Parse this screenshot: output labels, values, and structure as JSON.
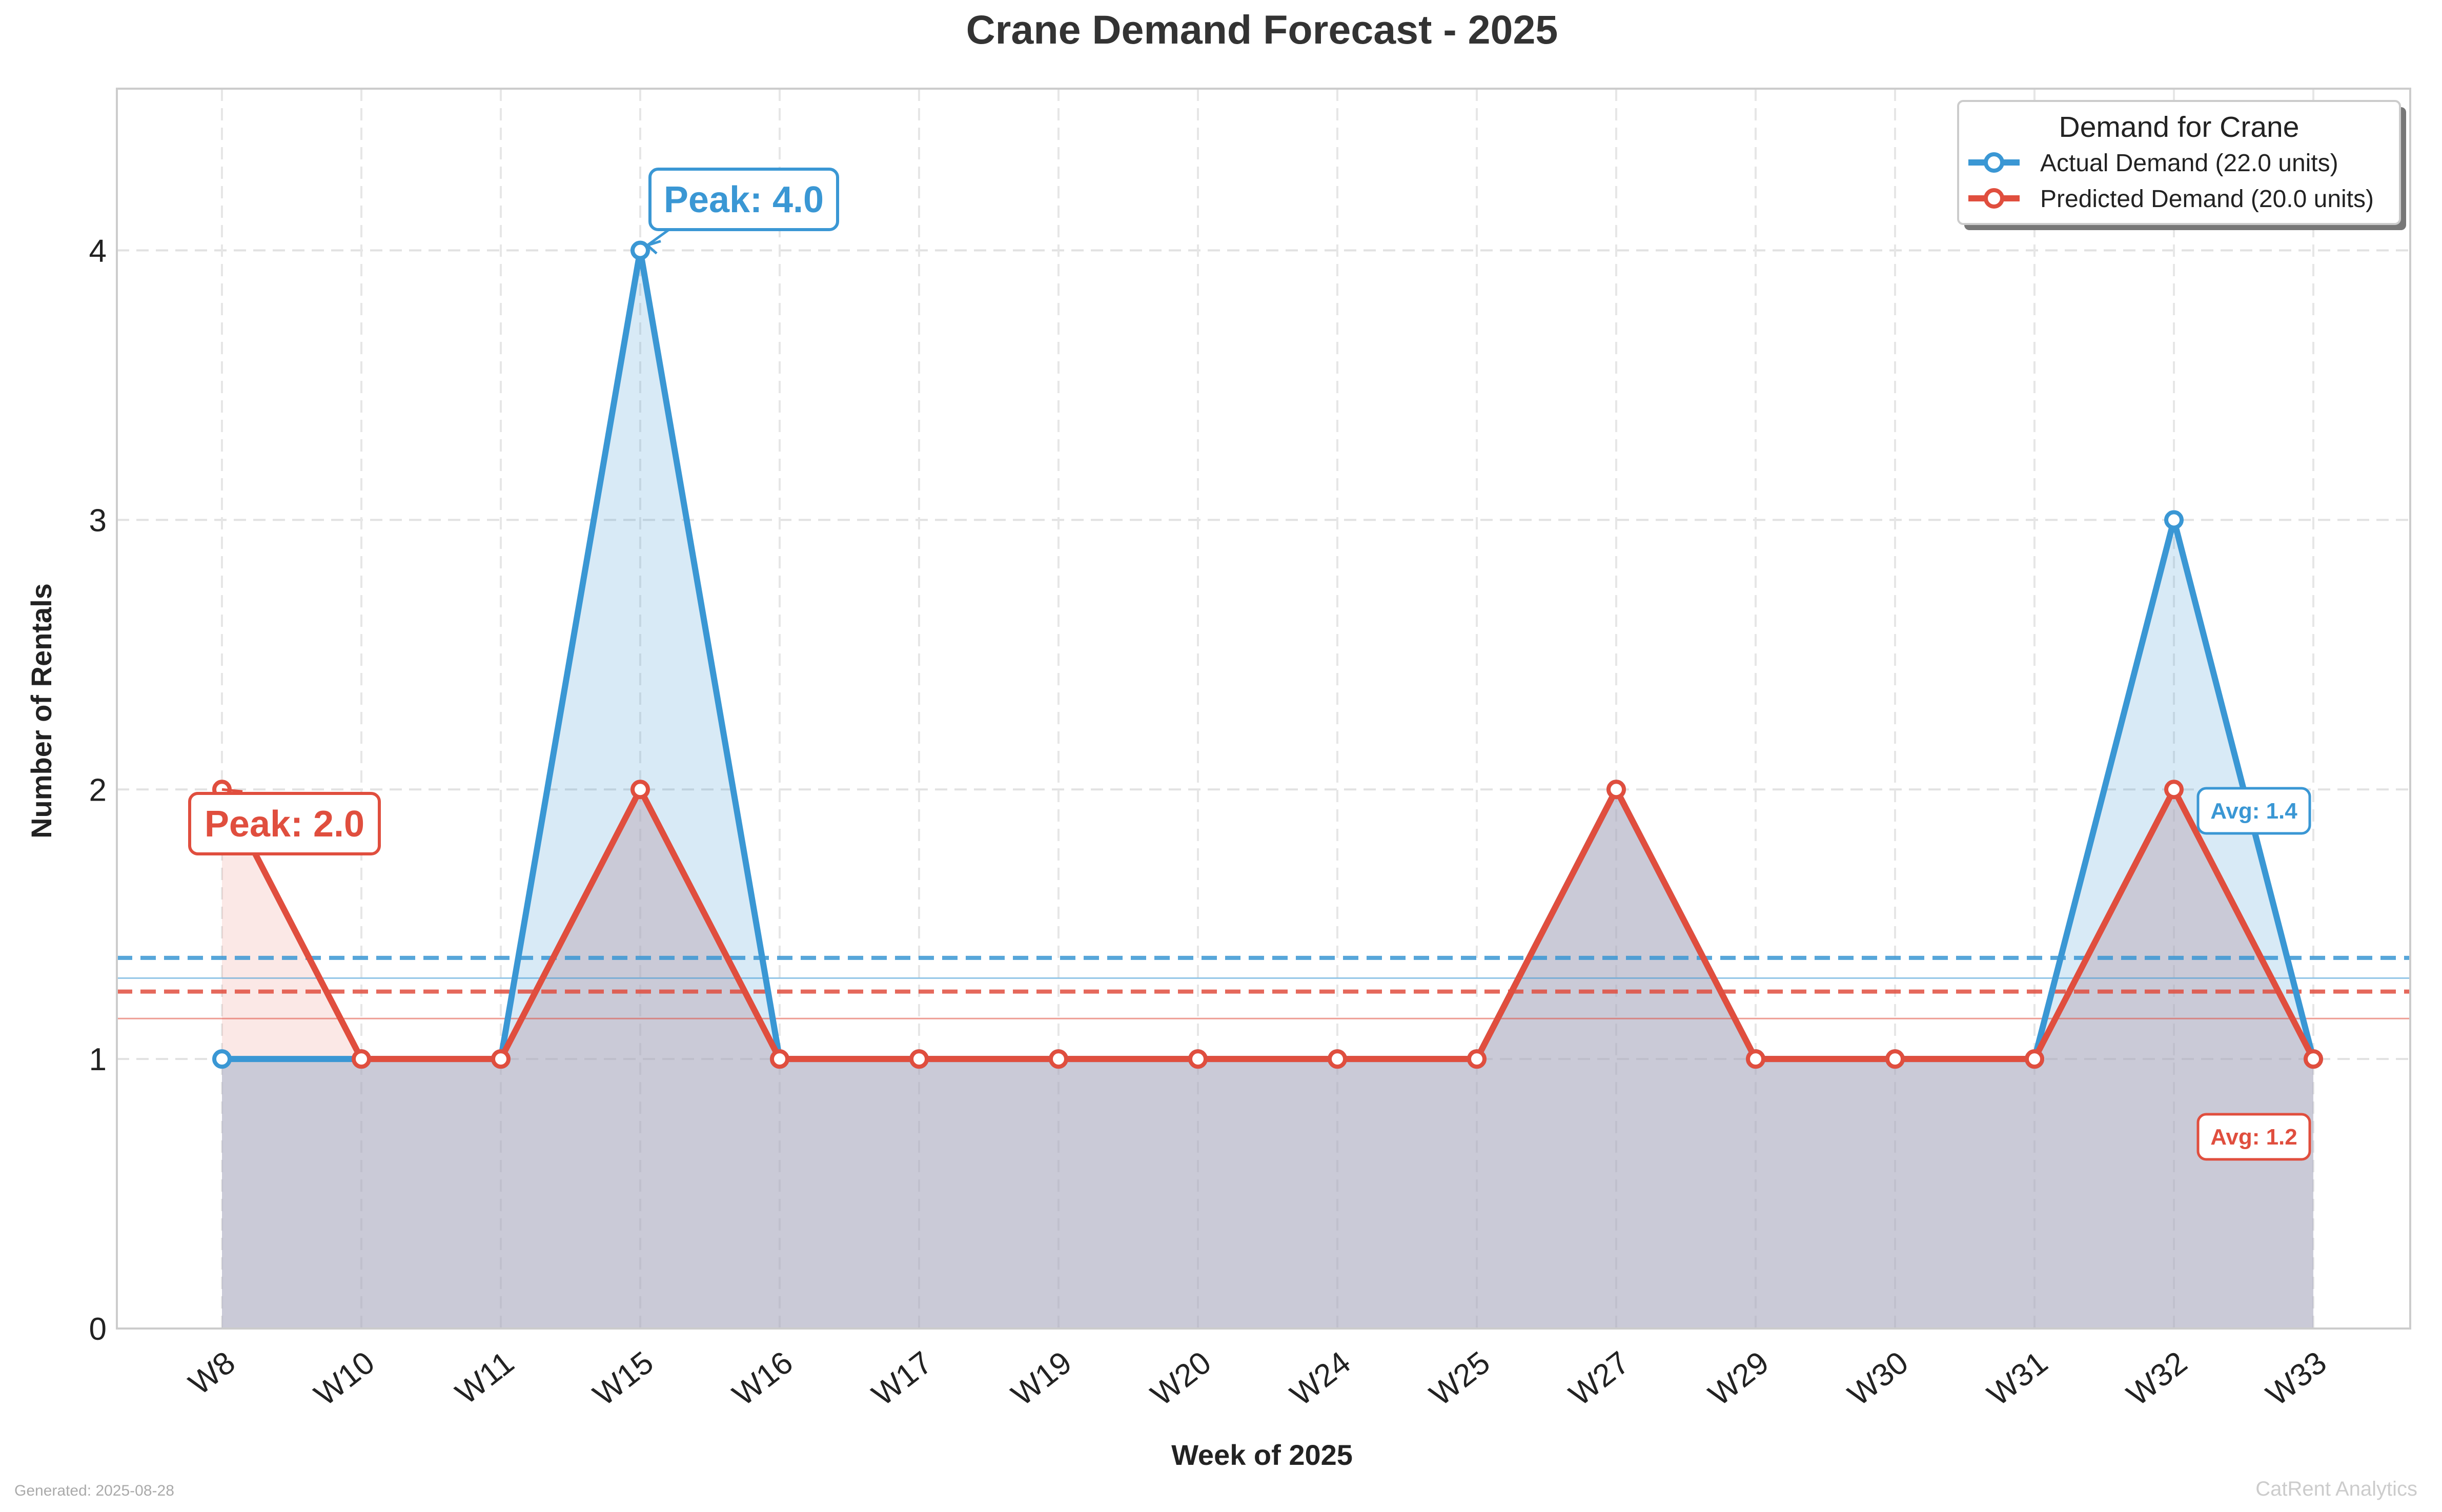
{
  "chart_data": {
    "type": "line",
    "title": "Crane Demand Forecast - 2025",
    "xlabel": "Week of 2025",
    "ylabel": "Number of Rentals",
    "categories": [
      "W8",
      "W10",
      "W11",
      "W15",
      "W16",
      "W17",
      "W19",
      "W20",
      "W24",
      "W25",
      "W27",
      "W29",
      "W30",
      "W31",
      "W32",
      "W33"
    ],
    "ylim": [
      0,
      4.6
    ],
    "yticks": [
      0,
      1,
      2,
      3,
      4
    ],
    "grid": true,
    "legend": {
      "title": "Demand for Crane",
      "position": "top-right"
    },
    "series": [
      {
        "name": "Actual Demand (22.0 units)",
        "color": "#3a97d4",
        "fill": "#d6e9f8",
        "values": [
          1,
          1,
          1,
          4,
          1,
          1,
          1,
          1,
          1,
          1,
          2,
          1,
          1,
          1,
          3,
          1
        ],
        "mean_line": 1.375,
        "band_line": 1.3,
        "avg_label": "Avg: 1.4",
        "peak_label": "Peak: 4.0",
        "peak_index": 3
      },
      {
        "name": "Predicted Demand (20.0 units)",
        "color": "#e04e3e",
        "fill": "#fde4e4",
        "values": [
          2,
          1,
          1,
          2,
          1,
          1,
          1,
          1,
          1,
          1,
          2,
          1,
          1,
          1,
          2,
          1
        ],
        "mean_line": 1.25,
        "band_line": 1.15,
        "avg_label": "Avg: 1.2",
        "peak_label": "Peak: 2.0",
        "peak_index": 0
      }
    ]
  },
  "footer": {
    "generated": "Generated: 2025-08-28",
    "brand": "CatRent Analytics"
  }
}
